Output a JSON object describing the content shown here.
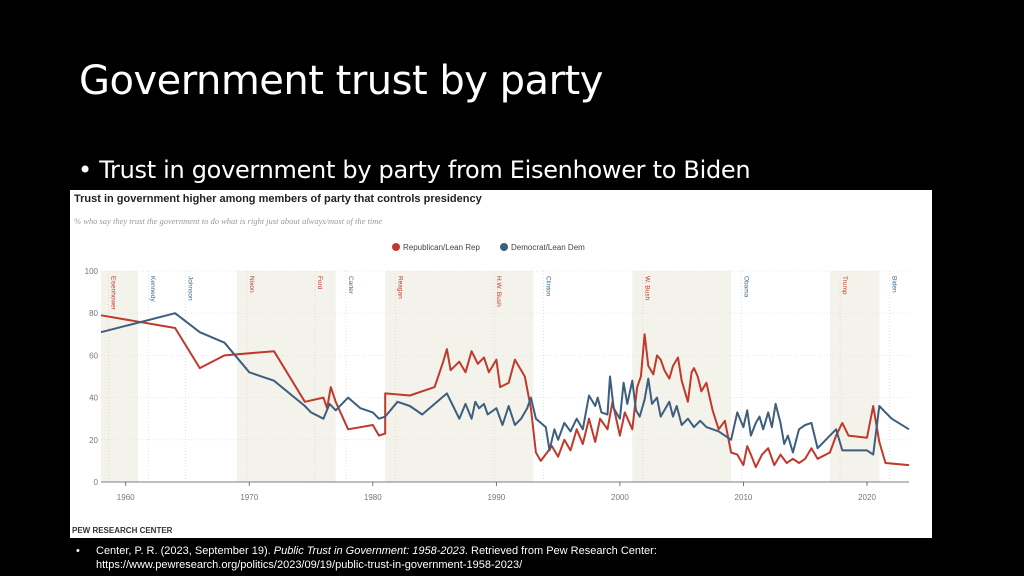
{
  "slide": {
    "title": "Government trust by party",
    "bullet": "Trust in government by party from Eisenhower to Biden"
  },
  "citation": {
    "bullet": "•",
    "prefix": "Center, P. R. (2023, September 19). ",
    "italic": "Public Trust in Government: 1958-2023",
    "suffix": ". Retrieved from Pew Research Center:",
    "url": "https://www.pewresearch.org/politics/2023/09/19/public-trust-in-government-1958-2023/"
  },
  "chart_data": {
    "type": "line",
    "title": "Trust in government higher among members of party that controls presidency",
    "subtitle": "% who say they trust the government to do what is right just about always/most of the time",
    "source": "PEW RESEARCH CENTER",
    "xlim": [
      1958,
      2023.4
    ],
    "ylim": [
      0,
      100
    ],
    "x_ticks": [
      1960,
      1970,
      1980,
      1990,
      2000,
      2010,
      2020
    ],
    "y_ticks": [
      0,
      20,
      40,
      60,
      80,
      100
    ],
    "legend_position": "top-center",
    "colors": {
      "rep": "#c0392b",
      "dem": "#3d5e7e",
      "rep_label": "#c0392b",
      "dem_label": "#3d6a8c",
      "band": "#f3f3ec"
    },
    "republican_terms": [
      [
        1958,
        1961
      ],
      [
        1969,
        1974.6
      ],
      [
        1974.6,
        1977
      ],
      [
        1981,
        1989
      ],
      [
        1989,
        1993
      ],
      [
        2001,
        2009
      ],
      [
        2017,
        2021
      ]
    ],
    "presidents": [
      {
        "name": "Eisenhower",
        "year": 1958.3,
        "party": "rep"
      },
      {
        "name": "Kennedy",
        "year": 1961.5,
        "party": "dem"
      },
      {
        "name": "Johnson",
        "year": 1964.5,
        "party": "dem"
      },
      {
        "name": "Nixon",
        "year": 1969.5,
        "party": "rep"
      },
      {
        "name": "Ford",
        "year": 1975,
        "party": "rep"
      },
      {
        "name": "Carter",
        "year": 1977.5,
        "party": "dem"
      },
      {
        "name": "Reagan",
        "year": 1981.5,
        "party": "rep"
      },
      {
        "name": "H.W. Bush",
        "year": 1989.5,
        "party": "rep"
      },
      {
        "name": "Clinton",
        "year": 1993.5,
        "party": "dem"
      },
      {
        "name": "W. Bush",
        "year": 2001.5,
        "party": "rep"
      },
      {
        "name": "Obama",
        "year": 2009.5,
        "party": "dem"
      },
      {
        "name": "Trump",
        "year": 2017.5,
        "party": "rep"
      },
      {
        "name": "Biden",
        "year": 2021.5,
        "party": "dem"
      }
    ],
    "series": [
      {
        "name": "Republican/Lean Rep",
        "key": "rep",
        "points": [
          [
            1958,
            79
          ],
          [
            1964,
            73
          ],
          [
            1966,
            54
          ],
          [
            1968,
            60
          ],
          [
            1972,
            62
          ],
          [
            1974.5,
            38
          ],
          [
            1976,
            40
          ],
          [
            1976.3,
            35
          ],
          [
            1976.6,
            45
          ],
          [
            1977,
            38
          ],
          [
            1978,
            25
          ],
          [
            1980,
            27
          ],
          [
            1980.5,
            22
          ],
          [
            1981,
            23
          ],
          [
            1981,
            42
          ],
          [
            1983,
            41
          ],
          [
            1985,
            45
          ],
          [
            1985.7,
            57
          ],
          [
            1986,
            63
          ],
          [
            1986.3,
            53
          ],
          [
            1987,
            57
          ],
          [
            1987.5,
            52
          ],
          [
            1988,
            62
          ],
          [
            1988.5,
            56
          ],
          [
            1989,
            59
          ],
          [
            1989.4,
            52
          ],
          [
            1990,
            58
          ],
          [
            1990.3,
            45
          ],
          [
            1991,
            47
          ],
          [
            1991.5,
            58
          ],
          [
            1992.3,
            50
          ],
          [
            1992.8,
            35
          ],
          [
            1993.2,
            14
          ],
          [
            1993.6,
            10
          ],
          [
            1994.5,
            17
          ],
          [
            1995,
            12
          ],
          [
            1995.5,
            20
          ],
          [
            1996,
            15
          ],
          [
            1996.5,
            25
          ],
          [
            1997,
            18
          ],
          [
            1997.5,
            30
          ],
          [
            1998,
            19
          ],
          [
            1998.4,
            30
          ],
          [
            1999,
            25
          ],
          [
            1999.4,
            38
          ],
          [
            2000,
            22
          ],
          [
            2000.4,
            33
          ],
          [
            2001,
            25
          ],
          [
            2001.4,
            45
          ],
          [
            2001.7,
            50
          ],
          [
            2002,
            70
          ],
          [
            2002.3,
            55
          ],
          [
            2002.7,
            51
          ],
          [
            2003,
            60
          ],
          [
            2003.3,
            58
          ],
          [
            2003.6,
            53
          ],
          [
            2004,
            49
          ],
          [
            2004.3,
            55
          ],
          [
            2004.7,
            59
          ],
          [
            2005,
            48
          ],
          [
            2005.5,
            38
          ],
          [
            2005.8,
            52
          ],
          [
            2006,
            54
          ],
          [
            2006.3,
            50
          ],
          [
            2006.6,
            43
          ],
          [
            2007,
            47
          ],
          [
            2007.5,
            34
          ],
          [
            2008,
            25
          ],
          [
            2008.5,
            29
          ],
          [
            2009,
            14
          ],
          [
            2009.5,
            13
          ],
          [
            2010,
            8
          ],
          [
            2010.3,
            17
          ],
          [
            2010.6,
            13
          ],
          [
            2011,
            7
          ],
          [
            2011.5,
            13
          ],
          [
            2012,
            16
          ],
          [
            2012.5,
            8
          ],
          [
            2013,
            13
          ],
          [
            2013.5,
            9
          ],
          [
            2014,
            11
          ],
          [
            2014.5,
            9
          ],
          [
            2015,
            11
          ],
          [
            2015.5,
            16
          ],
          [
            2016,
            11
          ],
          [
            2017,
            14
          ],
          [
            2017.5,
            22
          ],
          [
            2018,
            28
          ],
          [
            2018.5,
            22
          ],
          [
            2020,
            21
          ],
          [
            2020.5,
            36
          ],
          [
            2021,
            19
          ],
          [
            2021.5,
            9
          ],
          [
            2023.4,
            8
          ]
        ]
      },
      {
        "name": "Democrat/Lean Dem",
        "key": "dem",
        "points": [
          [
            1958,
            71
          ],
          [
            1964,
            80
          ],
          [
            1966,
            71
          ],
          [
            1968,
            66
          ],
          [
            1970,
            52
          ],
          [
            1972,
            48
          ],
          [
            1974.5,
            36
          ],
          [
            1975,
            33
          ],
          [
            1976,
            30
          ],
          [
            1976.5,
            37
          ],
          [
            1977,
            34
          ],
          [
            1978,
            40
          ],
          [
            1979,
            35
          ],
          [
            1980,
            33
          ],
          [
            1980.5,
            30
          ],
          [
            1981,
            31
          ],
          [
            1982,
            38
          ],
          [
            1983,
            36
          ],
          [
            1984,
            32
          ],
          [
            1986,
            42
          ],
          [
            1987,
            30
          ],
          [
            1987.5,
            37
          ],
          [
            1988,
            30
          ],
          [
            1988.3,
            38
          ],
          [
            1988.6,
            35
          ],
          [
            1989,
            37
          ],
          [
            1989.3,
            32
          ],
          [
            1990,
            35
          ],
          [
            1990.5,
            27
          ],
          [
            1991,
            36
          ],
          [
            1991.5,
            27
          ],
          [
            1992,
            30
          ],
          [
            1992.5,
            35
          ],
          [
            1992.8,
            40
          ],
          [
            1993.2,
            30
          ],
          [
            1994,
            26
          ],
          [
            1994.3,
            15
          ],
          [
            1994.7,
            25
          ],
          [
            1995,
            20
          ],
          [
            1995.5,
            28
          ],
          [
            1996,
            24
          ],
          [
            1996.5,
            30
          ],
          [
            1997,
            25
          ],
          [
            1997.5,
            41
          ],
          [
            1998,
            36
          ],
          [
            1998.2,
            40
          ],
          [
            1998.5,
            33
          ],
          [
            1999,
            32
          ],
          [
            1999.2,
            50
          ],
          [
            1999.5,
            35
          ],
          [
            2000,
            30
          ],
          [
            2000.3,
            47
          ],
          [
            2000.6,
            37
          ],
          [
            2001,
            48
          ],
          [
            2001.3,
            34
          ],
          [
            2001.6,
            31
          ],
          [
            2002,
            39
          ],
          [
            2002.3,
            49
          ],
          [
            2002.6,
            37
          ],
          [
            2003,
            40
          ],
          [
            2003.3,
            31
          ],
          [
            2004,
            38
          ],
          [
            2004.3,
            31
          ],
          [
            2004.6,
            36
          ],
          [
            2005,
            27
          ],
          [
            2005.5,
            30
          ],
          [
            2006,
            26
          ],
          [
            2006.5,
            29
          ],
          [
            2007,
            26
          ],
          [
            2008,
            24
          ],
          [
            2009,
            20
          ],
          [
            2009.5,
            33
          ],
          [
            2010,
            26
          ],
          [
            2010.3,
            34
          ],
          [
            2010.6,
            22
          ],
          [
            2011,
            28
          ],
          [
            2011.3,
            31
          ],
          [
            2011.6,
            25
          ],
          [
            2012,
            33
          ],
          [
            2012.3,
            26
          ],
          [
            2012.6,
            37
          ],
          [
            2013,
            28
          ],
          [
            2013.3,
            18
          ],
          [
            2013.6,
            22
          ],
          [
            2014,
            14
          ],
          [
            2014.5,
            25
          ],
          [
            2015,
            27
          ],
          [
            2015.5,
            28
          ],
          [
            2016,
            16
          ],
          [
            2017.5,
            25
          ],
          [
            2018,
            15
          ],
          [
            2020,
            15
          ],
          [
            2020.5,
            13
          ],
          [
            2021,
            36
          ],
          [
            2021.5,
            33
          ],
          [
            2022,
            30
          ],
          [
            2023.4,
            25
          ]
        ]
      }
    ]
  }
}
